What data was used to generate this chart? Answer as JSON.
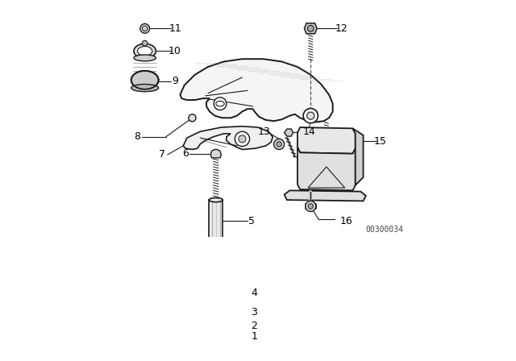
{
  "bg_color": "#ffffff",
  "line_color": "#1a1a1a",
  "label_color": "#000000",
  "watermark": "00300034",
  "figsize": [
    6.4,
    4.48
  ],
  "dpi": 100
}
